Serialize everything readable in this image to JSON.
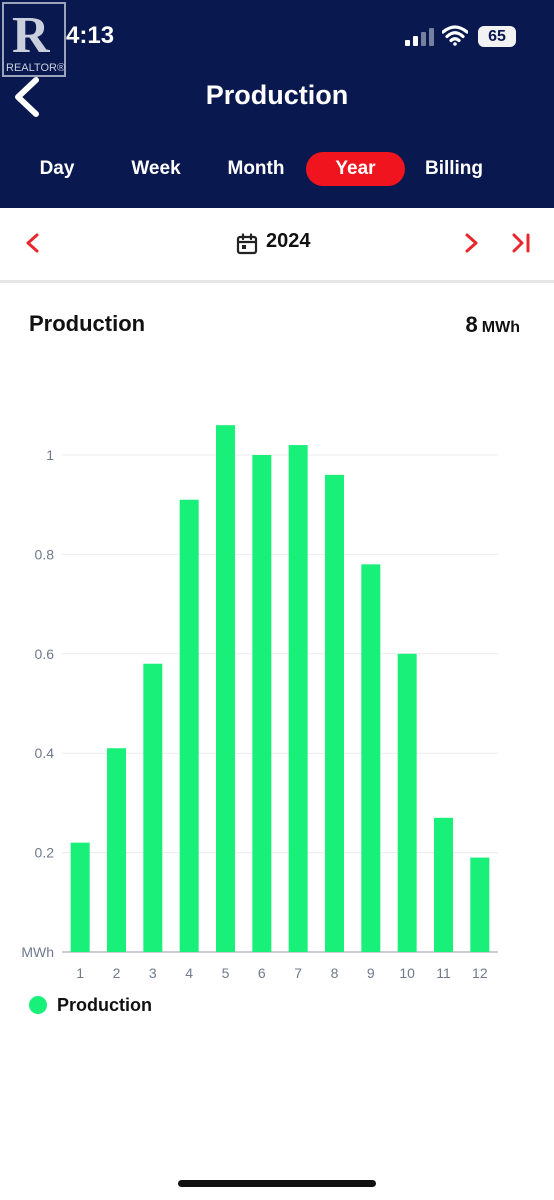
{
  "status": {
    "time": "4:13",
    "battery": "65"
  },
  "watermark": {
    "letter": "R",
    "text": "REALTOR®"
  },
  "header": {
    "title": "Production"
  },
  "tabs": [
    {
      "label": "Day",
      "active": false
    },
    {
      "label": "Week",
      "active": false
    },
    {
      "label": "Month",
      "active": false
    },
    {
      "label": "Year",
      "active": true
    },
    {
      "label": "Billing",
      "active": false
    }
  ],
  "date_nav": {
    "label": "2024"
  },
  "summary": {
    "title": "Production",
    "total": "8",
    "unit": "MWh"
  },
  "legend": {
    "label": "Production",
    "color": "#19f07a"
  },
  "colors": {
    "header_bg": "#0a1850",
    "accent": "#f0141e",
    "bar": "#19f07a"
  },
  "chart_data": {
    "type": "bar",
    "categories": [
      "1",
      "2",
      "3",
      "4",
      "5",
      "6",
      "7",
      "8",
      "9",
      "10",
      "11",
      "12"
    ],
    "series": [
      {
        "name": "Production",
        "values": [
          0.22,
          0.41,
          0.58,
          0.91,
          1.06,
          1.0,
          1.02,
          0.96,
          0.78,
          0.6,
          0.27,
          0.19
        ]
      }
    ],
    "yticks": [
      "MWh",
      "0.2",
      "0.4",
      "0.6",
      "0.8",
      "1"
    ],
    "ylim": [
      0,
      1.2
    ],
    "grid": true,
    "legend_position": "bottom-left"
  }
}
